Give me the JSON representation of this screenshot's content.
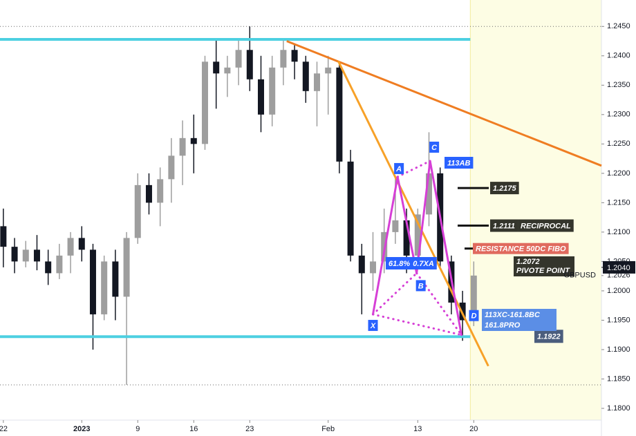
{
  "chart_data": {
    "type": "candlestick",
    "symbol": "GBPUSD",
    "x": [
      0,
      1,
      2,
      3,
      4,
      5,
      6,
      7,
      8,
      9,
      10,
      11,
      12,
      13,
      14,
      15,
      16,
      17,
      18,
      19,
      20,
      21,
      22,
      23,
      24,
      25,
      26,
      27,
      28,
      29,
      30,
      31,
      32,
      33,
      34,
      35,
      36,
      37,
      38,
      39,
      40,
      41,
      42
    ],
    "open": [
      1.211,
      1.2075,
      1.205,
      1.207,
      1.205,
      1.203,
      1.206,
      1.209,
      1.207,
      1.196,
      1.205,
      1.199,
      1.209,
      1.218,
      1.215,
      1.219,
      1.223,
      1.226,
      1.225,
      1.239,
      1.237,
      1.238,
      1.241,
      1.236,
      1.23,
      1.238,
      1.241,
      1.239,
      1.234,
      1.237,
      1.238,
      1.222,
      1.206,
      1.203,
      1.205,
      1.21,
      1.212,
      1.206,
      1.213,
      1.22,
      1.205,
      1.198,
      1.195
    ],
    "high": [
      1.214,
      1.209,
      1.2085,
      1.2095,
      1.207,
      1.208,
      1.21,
      1.211,
      1.208,
      1.206,
      1.207,
      1.21,
      1.22,
      1.22,
      1.221,
      1.226,
      1.229,
      1.23,
      1.24,
      1.243,
      1.24,
      1.243,
      1.245,
      1.24,
      1.24,
      1.243,
      1.242,
      1.24,
      1.239,
      1.24,
      1.239,
      1.224,
      1.208,
      1.21,
      1.214,
      1.2195,
      1.214,
      1.214,
      1.227,
      1.221,
      1.206,
      1.2,
      1.205
    ],
    "low": [
      1.204,
      1.203,
      1.204,
      1.2035,
      1.201,
      1.202,
      1.203,
      1.205,
      1.19,
      1.195,
      1.195,
      1.184,
      1.208,
      1.213,
      1.211,
      1.215,
      1.218,
      1.22,
      1.224,
      1.231,
      1.233,
      1.235,
      1.234,
      1.227,
      1.228,
      1.235,
      1.236,
      1.232,
      1.228,
      1.23,
      1.22,
      1.205,
      1.196,
      1.2,
      1.203,
      1.208,
      1.203,
      1.204,
      1.211,
      1.204,
      1.196,
      1.1915,
      1.194
    ],
    "close": [
      1.2075,
      1.205,
      1.207,
      1.205,
      1.203,
      1.206,
      1.209,
      1.207,
      1.196,
      1.205,
      1.199,
      1.209,
      1.218,
      1.215,
      1.219,
      1.223,
      1.226,
      1.225,
      1.239,
      1.237,
      1.238,
      1.241,
      1.236,
      1.23,
      1.238,
      1.241,
      1.239,
      1.234,
      1.237,
      1.238,
      1.222,
      1.206,
      1.203,
      1.205,
      1.21,
      1.212,
      1.206,
      1.213,
      1.22,
      1.205,
      1.198,
      1.195,
      1.2026
    ],
    "up_color": "#9e9e9e",
    "down_color": "#131722",
    "xlim": [
      -0.3,
      53.4
    ],
    "xticks": [
      {
        "value": 0,
        "label": "22"
      },
      {
        "value": 7,
        "label": "2023"
      },
      {
        "value": 12,
        "label": "9"
      },
      {
        "value": 17,
        "label": "16"
      },
      {
        "value": 22,
        "label": "23"
      },
      {
        "value": 29,
        "label": "Feb"
      },
      {
        "value": 37,
        "label": "13"
      },
      {
        "value": 42,
        "label": "20"
      }
    ],
    "ylim": [
      1.178,
      1.2495
    ],
    "yticks": [
      {
        "value": 1.245,
        "label": "1.2450"
      },
      {
        "value": 1.24,
        "label": "1.2400"
      },
      {
        "value": 1.235,
        "label": "1.2350"
      },
      {
        "value": 1.23,
        "label": "1.2300"
      },
      {
        "value": 1.225,
        "label": "1.2250"
      },
      {
        "value": 1.22,
        "label": "1.2200"
      },
      {
        "value": 1.215,
        "label": "1.2150"
      },
      {
        "value": 1.21,
        "label": "1.2100"
      },
      {
        "value": 1.205,
        "label": "1.2050"
      },
      {
        "value": 1.2,
        "label": "1.2000"
      },
      {
        "value": 1.195,
        "label": "1.1950"
      },
      {
        "value": 1.19,
        "label": "1.1900"
      },
      {
        "value": 1.185,
        "label": "1.1850"
      },
      {
        "value": 1.18,
        "label": "1.1800"
      }
    ],
    "last_price": {
      "value": 1.204,
      "label": "1.2040"
    },
    "symbol_price": {
      "value": 1.2026,
      "label": "1.2026"
    },
    "dotted_levels": [
      1.245,
      1.184
    ],
    "hlines": [
      {
        "value": 1.2428,
        "color": "#4dd0e1"
      },
      {
        "value": 1.1922,
        "color": "#4dd0e1",
        "label": "1.1922"
      }
    ],
    "trendlines": [
      {
        "x": [
          25.3,
          53.4
        ],
        "y": [
          1.2425,
          1.2213
        ],
        "color": "#ef7d22"
      },
      {
        "x": [
          29.9,
          43.3
        ],
        "y": [
          1.2391,
          1.1872
        ],
        "color": "#f7a128"
      }
    ],
    "levels": [
      {
        "value": 1.2175,
        "label": "1.2175"
      },
      {
        "value": 1.2111,
        "label": "1.2111",
        "tag": "RECIPROCAL"
      },
      {
        "value": 1.2072,
        "label": "1.2072",
        "tag": "RESISTANCE 50DC FIBO",
        "note": "PIVOTE POINT"
      }
    ],
    "pattern": {
      "color": "#d63fd6",
      "points": [
        {
          "label": "X",
          "x": 33.0,
          "y": 1.196
        },
        {
          "label": "A",
          "x": 35.2,
          "y": 1.2194
        },
        {
          "label": "B",
          "x": 36.9,
          "y": 1.203
        },
        {
          "label": "C",
          "x": 38.1,
          "y": 1.2221
        },
        {
          "label": "D",
          "x": 40.9,
          "y": 1.1925
        }
      ],
      "notes": [
        "113AB",
        "61.8%",
        "0.7XA",
        "113XC-161.8BC",
        "161.8PRO"
      ]
    }
  }
}
